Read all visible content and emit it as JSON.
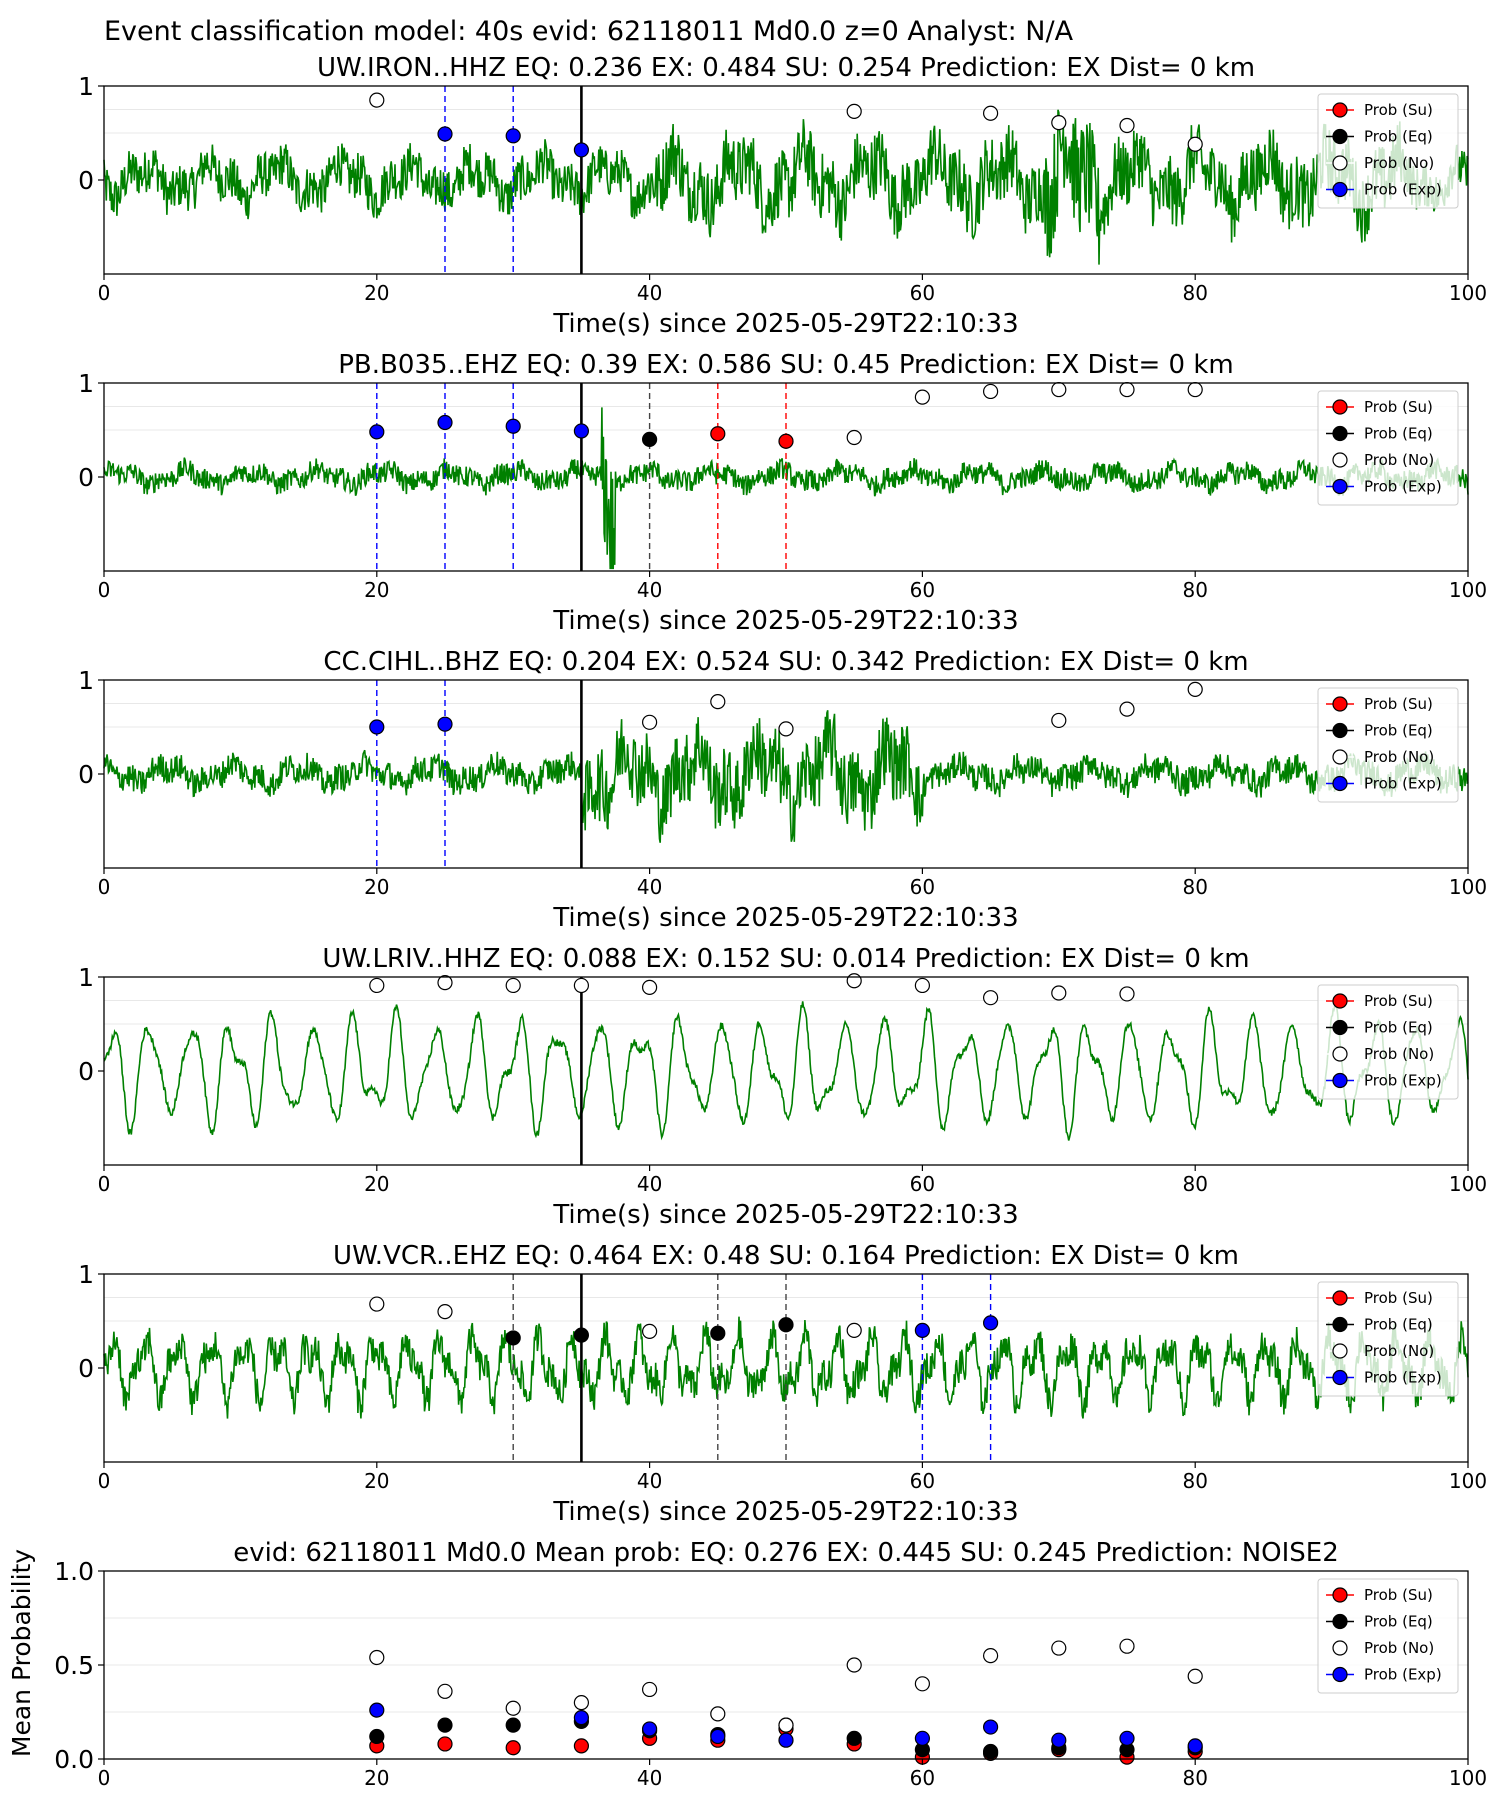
{
  "figure": {
    "suptitle": "Event classification model: 40s evid: 62118011 Md0.0 z=0 Analyst: N/A"
  },
  "legend_labels": [
    "Prob (Su)",
    "Prob (Eq)",
    "Prob (No)",
    "Prob (Exp)"
  ],
  "colors": {
    "waveform": "#008000",
    "su": "#ff0000",
    "eq": "#000000",
    "no": "#ffffff",
    "exp": "#0000ff",
    "reference_line": "#000000"
  },
  "chart_data": [
    {
      "type": "line",
      "title": "UW.IRON..HHZ   EQ: 0.236  EX: 0.484  SU: 0.254   Prediction: EX    Dist= 0 km",
      "xlabel": "Time(s) since 2025-05-29T22:10:33",
      "ylabel": "",
      "xlim": [
        0,
        100
      ],
      "ylim": [
        -1,
        1
      ],
      "x_ticks": [
        "0",
        "20",
        "40",
        "60",
        "80",
        "100"
      ],
      "y_ticks": [
        "0",
        "1"
      ],
      "reference_line_x": 35,
      "waveform": {
        "character": "noisy",
        "amplitude": 0.3,
        "bursts": [
          [
            40,
            95,
            0.45
          ],
          [
            69,
            73,
            0.75
          ]
        ]
      },
      "series": [
        {
          "name": "Prob (Su)",
          "x": [],
          "y": []
        },
        {
          "name": "Prob (Eq)",
          "x": [],
          "y": []
        },
        {
          "name": "Prob (No)",
          "x": [
            20,
            55,
            65,
            70,
            75,
            80
          ],
          "y": [
            0.85,
            0.73,
            0.71,
            0.61,
            0.58,
            0.38
          ]
        },
        {
          "name": "Prob (Exp)",
          "x": [
            25,
            30,
            35
          ],
          "y": [
            0.49,
            0.47,
            0.32
          ]
        }
      ],
      "marker_lines": [
        {
          "x": 25,
          "class": "exp"
        },
        {
          "x": 30,
          "class": "exp"
        }
      ],
      "legend_loc": "upper right"
    },
    {
      "type": "line",
      "title": "PB.B035..EHZ   EQ: 0.39  EX: 0.586  SU: 0.45   Prediction: EX    Dist= 0 km",
      "xlabel": "Time(s) since 2025-05-29T22:10:33",
      "ylabel": "",
      "xlim": [
        0,
        100
      ],
      "ylim": [
        -1,
        1
      ],
      "x_ticks": [
        "0",
        "20",
        "40",
        "60",
        "80",
        "100"
      ],
      "y_ticks": [
        "0",
        "1"
      ],
      "reference_line_x": 35,
      "waveform": {
        "character": "noisy",
        "amplitude": 0.14,
        "bursts": [
          [
            36.5,
            37.5,
            0.9
          ]
        ]
      },
      "series": [
        {
          "name": "Prob (Su)",
          "x": [
            45,
            50
          ],
          "y": [
            0.46,
            0.38
          ]
        },
        {
          "name": "Prob (Eq)",
          "x": [
            40
          ],
          "y": [
            0.4
          ]
        },
        {
          "name": "Prob (No)",
          "x": [
            55,
            60,
            65,
            70,
            75,
            80
          ],
          "y": [
            0.42,
            0.85,
            0.91,
            0.93,
            0.93,
            0.93
          ]
        },
        {
          "name": "Prob (Exp)",
          "x": [
            20,
            25,
            30,
            35
          ],
          "y": [
            0.48,
            0.58,
            0.54,
            0.49
          ]
        }
      ],
      "marker_lines": [
        {
          "x": 20,
          "class": "exp"
        },
        {
          "x": 25,
          "class": "exp"
        },
        {
          "x": 30,
          "class": "exp"
        },
        {
          "x": 40,
          "class": "eq"
        },
        {
          "x": 45,
          "class": "su"
        },
        {
          "x": 50,
          "class": "su"
        }
      ],
      "legend_loc": "upper right"
    },
    {
      "type": "line",
      "title": "CC.CIHL..BHZ   EQ: 0.204  EX: 0.524  SU: 0.342   Prediction: EX    Dist= 0 km",
      "xlabel": "Time(s) since 2025-05-29T22:10:33",
      "ylabel": "",
      "xlim": [
        0,
        100
      ],
      "ylim": [
        -1,
        1
      ],
      "x_ticks": [
        "0",
        "20",
        "40",
        "60",
        "80",
        "100"
      ],
      "y_ticks": [
        "0",
        "1"
      ],
      "reference_line_x": 35,
      "waveform": {
        "character": "noisy",
        "amplitude": 0.18,
        "bursts": [
          [
            35,
            60,
            0.5
          ]
        ]
      },
      "series": [
        {
          "name": "Prob (Su)",
          "x": [],
          "y": []
        },
        {
          "name": "Prob (Eq)",
          "x": [],
          "y": []
        },
        {
          "name": "Prob (No)",
          "x": [
            40,
            45,
            50,
            70,
            75,
            80
          ],
          "y": [
            0.55,
            0.77,
            0.48,
            0.57,
            0.69,
            0.9
          ]
        },
        {
          "name": "Prob (Exp)",
          "x": [
            20,
            25
          ],
          "y": [
            0.5,
            0.53
          ]
        }
      ],
      "marker_lines": [
        {
          "x": 20,
          "class": "exp"
        },
        {
          "x": 25,
          "class": "exp"
        }
      ],
      "legend_loc": "upper right"
    },
    {
      "type": "line",
      "title": "UW.LRIV..HHZ   EQ: 0.088  EX: 0.152  SU: 0.014   Prediction: EX    Dist= 0 km",
      "xlabel": "Time(s) since 2025-05-29T22:10:33",
      "ylabel": "",
      "xlim": [
        0,
        100
      ],
      "ylim": [
        -1,
        1
      ],
      "x_ticks": [
        "0",
        "20",
        "40",
        "60",
        "80",
        "100"
      ],
      "y_ticks": [
        "0",
        "1"
      ],
      "reference_line_x": 35,
      "waveform": {
        "character": "oscillating",
        "amplitude": 0.75,
        "bursts": []
      },
      "series": [
        {
          "name": "Prob (Su)",
          "x": [],
          "y": []
        },
        {
          "name": "Prob (Eq)",
          "x": [],
          "y": []
        },
        {
          "name": "Prob (No)",
          "x": [
            20,
            25,
            30,
            35,
            40,
            55,
            60,
            65,
            70,
            75
          ],
          "y": [
            0.91,
            0.94,
            0.91,
            0.91,
            0.89,
            0.96,
            0.91,
            0.78,
            0.83,
            0.82
          ]
        },
        {
          "name": "Prob (Exp)",
          "x": [],
          "y": []
        }
      ],
      "marker_lines": [],
      "legend_loc": "upper right"
    },
    {
      "type": "line",
      "title": "UW.VCR..EHZ   EQ: 0.464  EX: 0.48  SU: 0.164   Prediction: EX    Dist= 0 km",
      "xlabel": "Time(s) since 2025-05-29T22:10:33",
      "ylabel": "",
      "xlim": [
        0,
        100
      ],
      "ylim": [
        -1,
        1
      ],
      "x_ticks": [
        "0",
        "20",
        "40",
        "60",
        "80",
        "100"
      ],
      "y_ticks": [
        "0",
        "1"
      ],
      "reference_line_x": 35,
      "waveform": {
        "character": "oscillating-noisy",
        "amplitude": 0.45,
        "bursts": []
      },
      "series": [
        {
          "name": "Prob (Su)",
          "x": [],
          "y": []
        },
        {
          "name": "Prob (Eq)",
          "x": [
            30,
            35,
            45,
            50
          ],
          "y": [
            0.32,
            0.35,
            0.37,
            0.46
          ]
        },
        {
          "name": "Prob (No)",
          "x": [
            20,
            25,
            40,
            55
          ],
          "y": [
            0.68,
            0.6,
            0.39,
            0.4
          ]
        },
        {
          "name": "Prob (Exp)",
          "x": [
            60,
            65
          ],
          "y": [
            0.4,
            0.48
          ]
        }
      ],
      "marker_lines": [
        {
          "x": 30,
          "class": "eq"
        },
        {
          "x": 45,
          "class": "eq"
        },
        {
          "x": 50,
          "class": "eq"
        },
        {
          "x": 60,
          "class": "exp"
        },
        {
          "x": 65,
          "class": "exp"
        }
      ],
      "legend_loc": "upper right"
    },
    {
      "type": "scatter",
      "title": "evid: 62118011  Md0.0   Mean prob:   EQ: 0.276  EX: 0.445  SU: 0.245   Prediction: NOISE2",
      "xlabel": "",
      "ylabel": "Mean Probability",
      "xlim": [
        0,
        100
      ],
      "ylim": [
        0,
        1
      ],
      "x_ticks": [
        "0",
        "20",
        "40",
        "60",
        "80",
        "100"
      ],
      "y_ticks": [
        "0.0",
        "0.5",
        "1.0"
      ],
      "series": [
        {
          "name": "Prob (Su)",
          "x": [
            20,
            25,
            30,
            35,
            40,
            45,
            50,
            55,
            60,
            65,
            70,
            75,
            80
          ],
          "y": [
            0.07,
            0.08,
            0.06,
            0.07,
            0.11,
            0.1,
            0.16,
            0.08,
            0.01,
            0.03,
            0.05,
            0.01,
            0.04
          ]
        },
        {
          "name": "Prob (Eq)",
          "x": [
            20,
            25,
            30,
            35,
            40,
            45,
            50,
            55,
            60,
            65,
            70,
            75,
            80
          ],
          "y": [
            0.12,
            0.18,
            0.18,
            0.2,
            0.15,
            0.13,
            0.18,
            0.11,
            0.05,
            0.04,
            0.06,
            0.05,
            0.06
          ]
        },
        {
          "name": "Prob (No)",
          "x": [
            20,
            25,
            30,
            35,
            40,
            45,
            50,
            55,
            60,
            65,
            70,
            75,
            80
          ],
          "y": [
            0.54,
            0.36,
            0.27,
            0.3,
            0.37,
            0.24,
            0.18,
            0.5,
            0.4,
            0.55,
            0.59,
            0.6,
            0.44
          ]
        },
        {
          "name": "Prob (Exp)",
          "x": [
            20,
            25,
            30,
            35,
            40,
            45,
            50,
            55,
            60,
            65,
            70,
            75,
            80
          ],
          "y": [
            0.26,
            null,
            null,
            0.22,
            0.16,
            0.12,
            0.1,
            null,
            0.11,
            0.17,
            0.1,
            0.11,
            0.07
          ]
        }
      ],
      "marker_lines": [],
      "legend_loc": "upper right"
    }
  ]
}
